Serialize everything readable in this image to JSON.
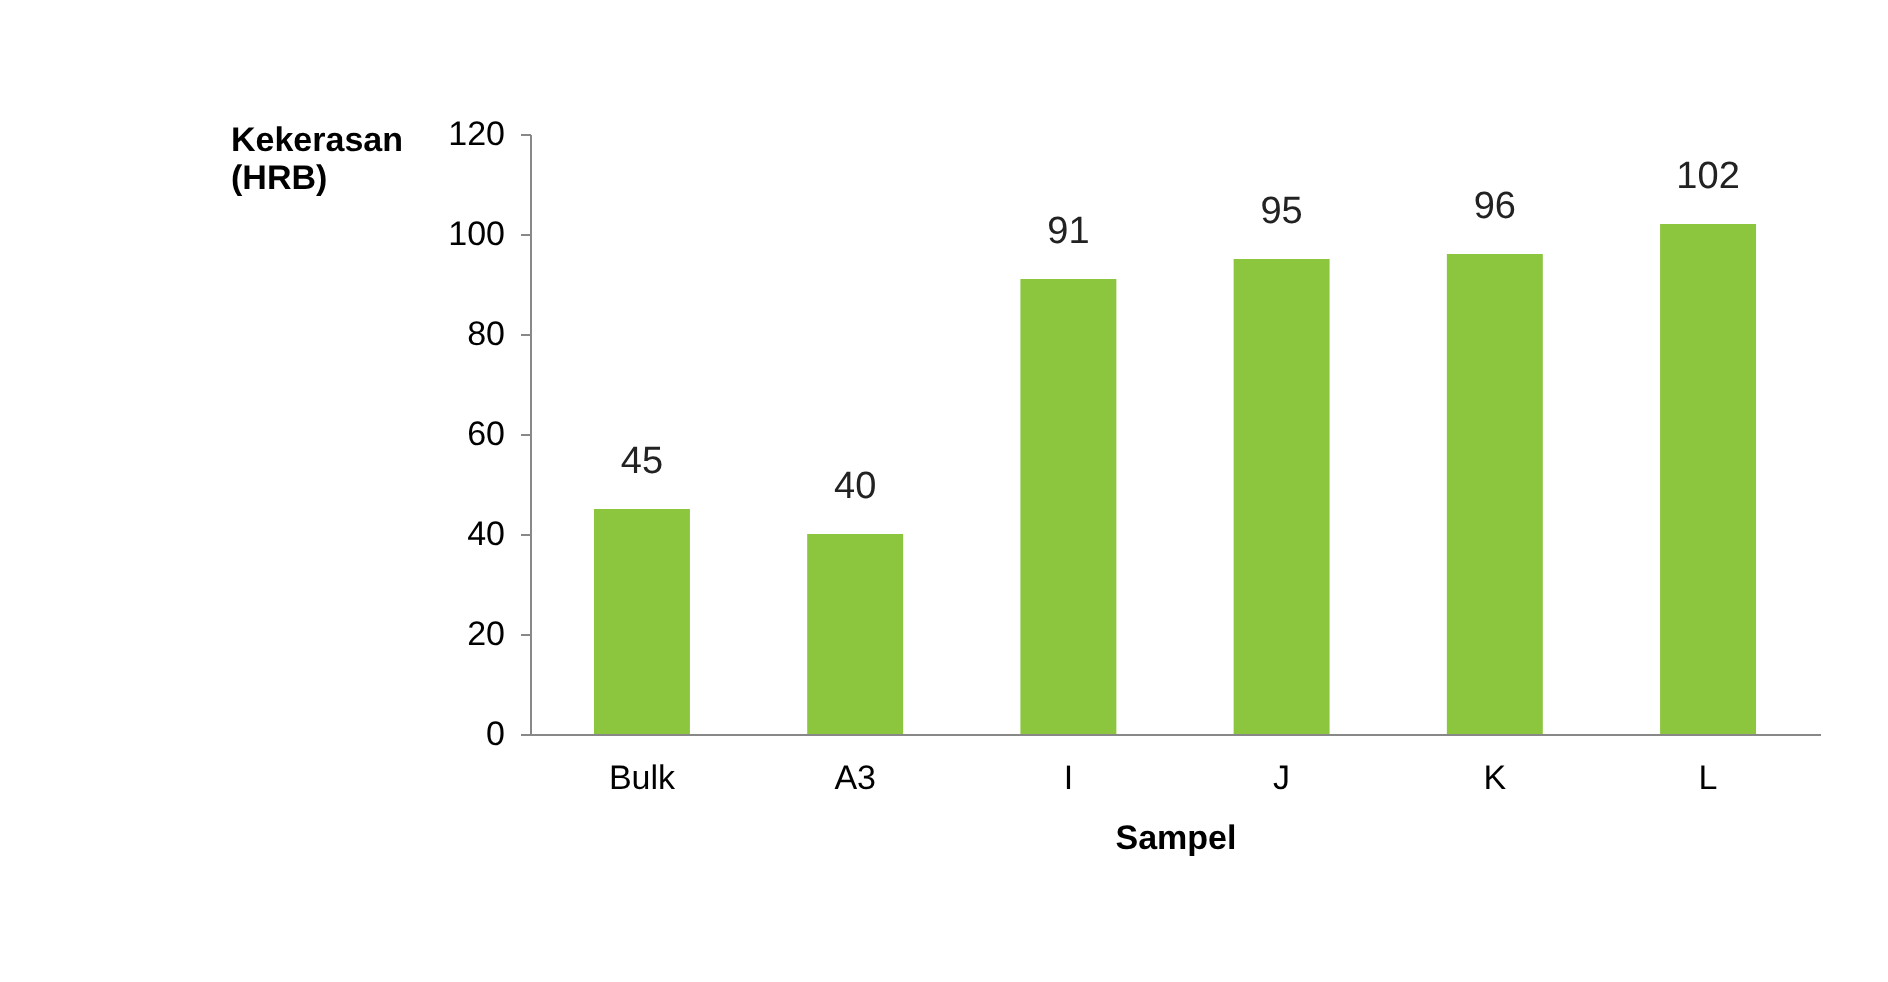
{
  "chart_data": {
    "type": "bar",
    "xlabel": "Sampel",
    "ylabel": "Kekerasan (HRB)",
    "categories": [
      "Bulk",
      "A3",
      "I",
      "J",
      "K",
      "L"
    ],
    "values": [
      45,
      40,
      91,
      95,
      96,
      102
    ],
    "color": "#8cc63f",
    "ylim": [
      0,
      120
    ],
    "yticks": [
      0,
      20,
      40,
      60,
      80,
      100,
      120
    ],
    "grid": false,
    "data_labels": true
  }
}
